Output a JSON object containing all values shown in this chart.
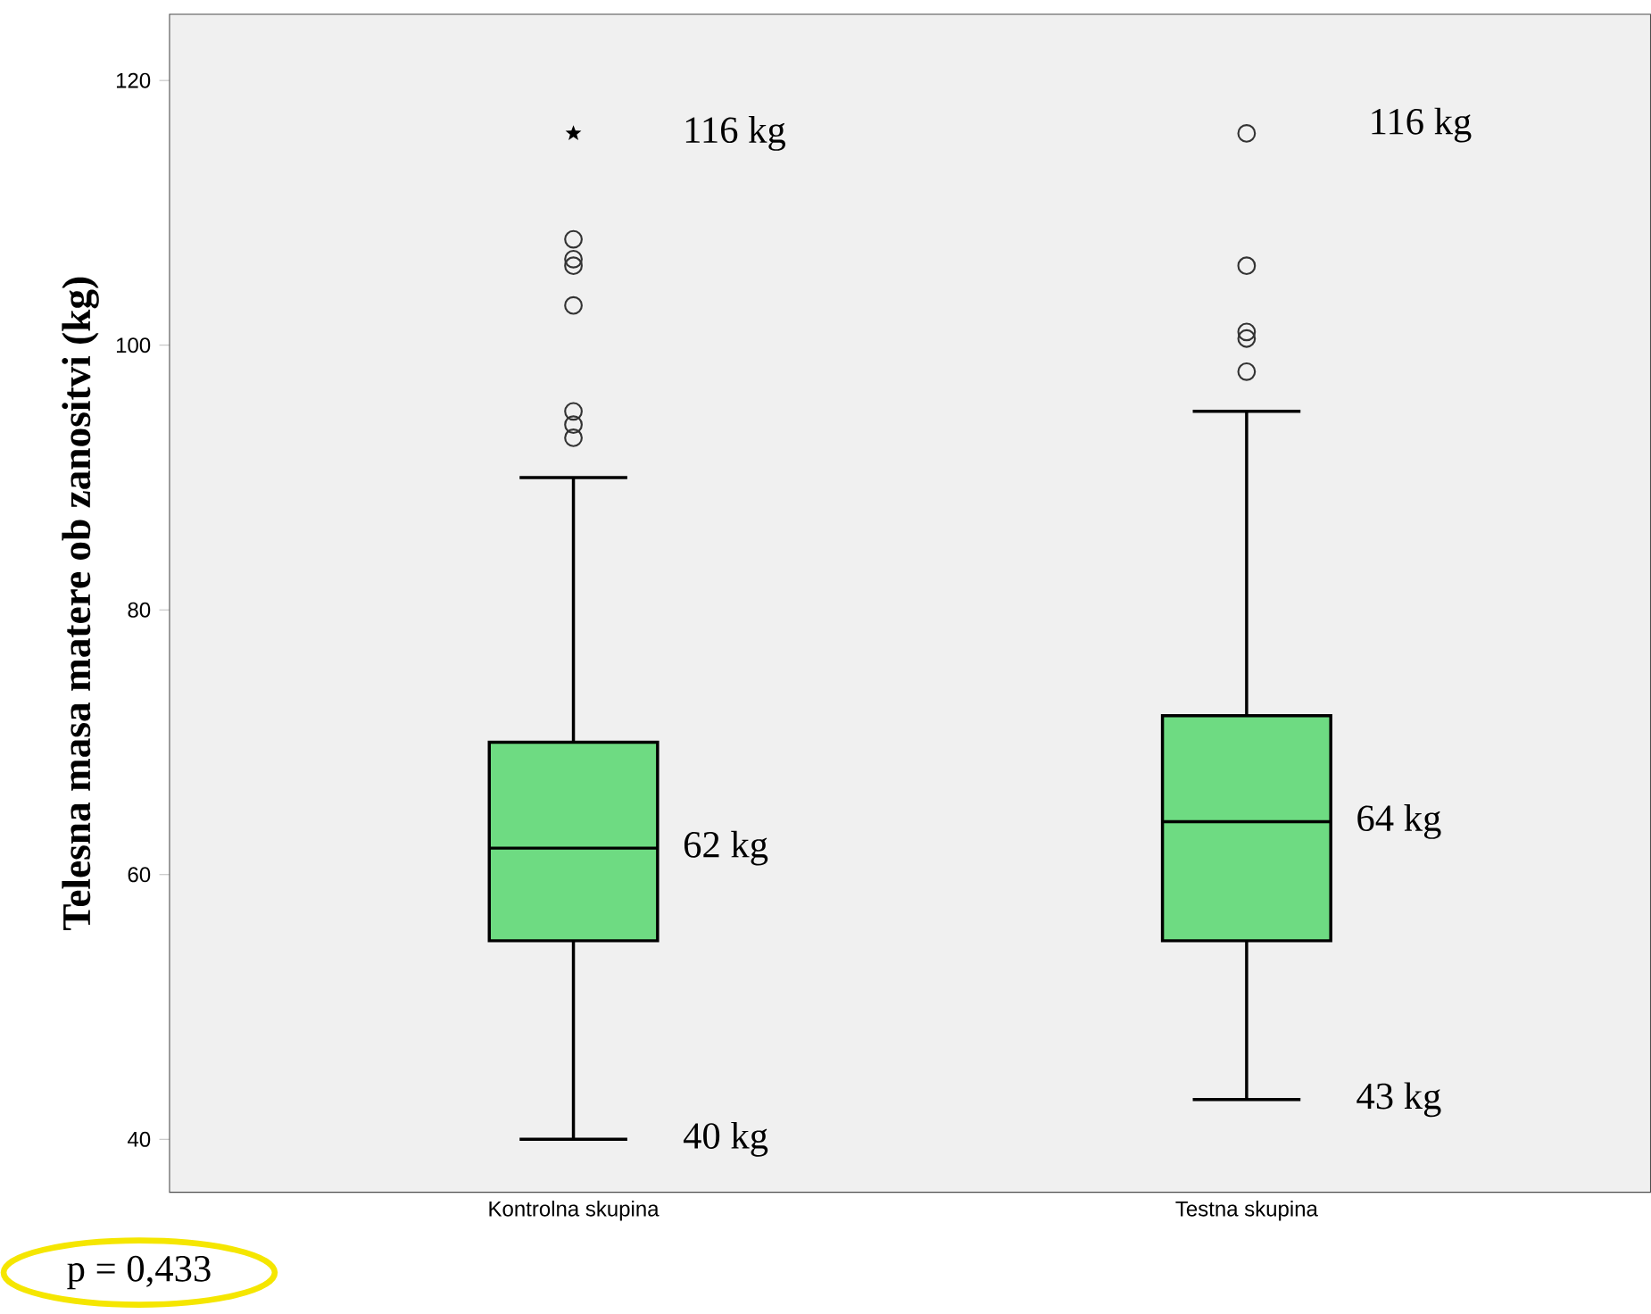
{
  "chart_data": {
    "type": "box",
    "ylabel": "Telesna masa matere ob zanositvi (kg)",
    "categories": [
      "Kontrolna skupina",
      "Testna skupina"
    ],
    "ylim": [
      36,
      125
    ],
    "yticks": [
      40,
      60,
      80,
      100,
      120
    ],
    "color": "#6edb82",
    "boxes": [
      {
        "low": 40,
        "q1": 55,
        "median": 62,
        "q3": 70,
        "high": 90,
        "outliers": [
          93,
          94,
          95,
          103,
          106,
          106.5,
          108
        ]
      },
      {
        "low": 43,
        "q1": 55,
        "median": 64,
        "q3": 72,
        "high": 95,
        "outliers": [
          98,
          100.5,
          101,
          106,
          116
        ]
      }
    ],
    "series": [
      {
        "type": "scatter",
        "x": [
          "Kontrolna skupina"
        ],
        "values": [
          116
        ],
        "marker": "star",
        "color": "#000000"
      }
    ],
    "annotations": [
      {
        "text": "116 kg",
        "x": "Kontrolna skupina",
        "y": 116
      },
      {
        "text": "62 kg",
        "x": "Kontrolna skupina",
        "y": 62
      },
      {
        "text": "40 kg",
        "x": "Kontrolna skupina",
        "y": 40
      },
      "116 kg",
      {
        "text": "64 kg",
        "x": "Testna skupina",
        "y": 64
      },
      {
        "text": "43 kg",
        "x": "Testna skupina",
        "y": 43
      },
      "p = 0,433"
    ]
  }
}
